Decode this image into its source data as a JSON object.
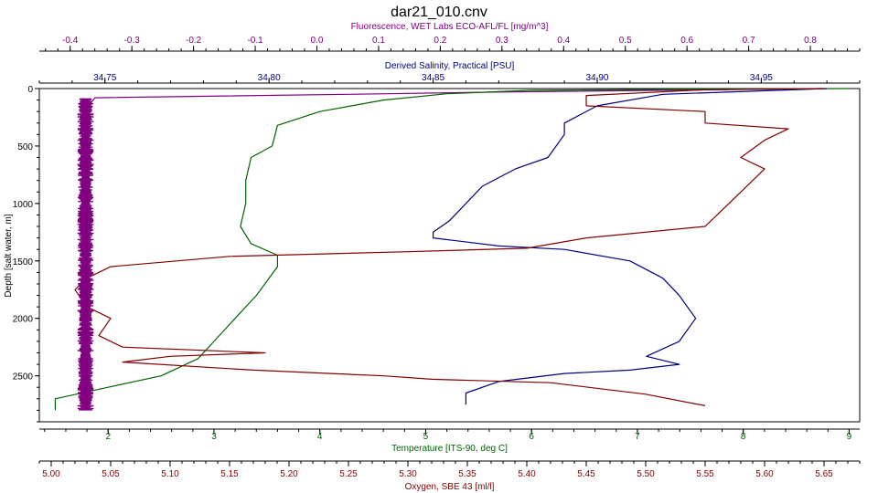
{
  "chart_data": {
    "type": "line",
    "title": "dar21_010.cnv",
    "y_axis": {
      "label": "Depth [salt water, m]",
      "range": [
        0,
        2900
      ],
      "ticks": [
        0,
        500,
        1000,
        1500,
        2000,
        2500
      ],
      "inverted": true
    },
    "x_axes": [
      {
        "id": "fluorescence",
        "label": "Fluorescence, WET Labs ECO-AFL/FL [mg/m^3]",
        "position": "top-outer",
        "color": "#800080",
        "range": [
          -0.45,
          0.88
        ],
        "ticks": [
          -0.4,
          -0.3,
          -0.2,
          -0.1,
          0.0,
          0.1,
          0.2,
          0.3,
          0.4,
          0.5,
          0.6,
          0.7,
          0.8
        ],
        "tick_labels": [
          "-0.4",
          "-0.3",
          "-0.2",
          "-0.1",
          "0.0",
          "0.1",
          "0.2",
          "0.3",
          "0.4",
          "0.5",
          "0.6",
          "0.7",
          "0.8"
        ]
      },
      {
        "id": "salinity",
        "label": "Derived Salinity, Practical [PSU]",
        "position": "top-inner",
        "color": "#000080",
        "range": [
          34.73,
          34.98
        ],
        "ticks": [
          34.75,
          34.8,
          34.85,
          34.9,
          34.95
        ],
        "tick_labels": [
          "34.75",
          "34.80",
          "34.85",
          "34.90",
          "34.95"
        ]
      },
      {
        "id": "temperature",
        "label": "Temperature [ITS-90, deg C]",
        "position": "bottom-inner",
        "color": "#006400",
        "range": [
          1.35,
          9.1
        ],
        "ticks": [
          2,
          3,
          4,
          5,
          6,
          7,
          8,
          9
        ],
        "tick_labels": [
          "2",
          "3",
          "4",
          "5",
          "6",
          "7",
          "8",
          "9"
        ]
      },
      {
        "id": "oxygen",
        "label": "Oxygen, SBE 43 [ml/l]",
        "position": "bottom-outer",
        "color": "#800000",
        "range": [
          4.99,
          5.68
        ],
        "ticks": [
          5.0,
          5.05,
          5.1,
          5.15,
          5.2,
          5.25,
          5.3,
          5.35,
          5.4,
          5.45,
          5.5,
          5.55,
          5.6,
          5.65
        ],
        "tick_labels": [
          "5.00",
          "5.05",
          "5.10",
          "5.15",
          "5.20",
          "5.25",
          "5.30",
          "5.35",
          "5.40",
          "5.45",
          "5.50",
          "5.55",
          "5.60",
          "5.65"
        ]
      }
    ],
    "series": [
      {
        "name": "Fluorescence",
        "axis": "fluorescence",
        "color": "#800080",
        "points": [
          [
            0.82,
            0
          ],
          [
            0.3,
            30
          ],
          [
            0.05,
            50
          ],
          [
            -0.36,
            80
          ],
          [
            -0.37,
            150
          ],
          [
            -0.375,
            400
          ],
          [
            -0.375,
            800
          ],
          [
            -0.375,
            1200
          ],
          [
            -0.375,
            1600
          ],
          [
            -0.375,
            2000
          ],
          [
            -0.375,
            2400
          ],
          [
            -0.375,
            2800
          ]
        ]
      },
      {
        "name": "Temperature",
        "axis": "temperature",
        "color": "#006400",
        "points": [
          [
            9.0,
            0
          ],
          [
            7.5,
            5
          ],
          [
            6.0,
            15
          ],
          [
            5.2,
            45
          ],
          [
            4.6,
            100
          ],
          [
            4.0,
            200
          ],
          [
            3.6,
            320
          ],
          [
            3.55,
            500
          ],
          [
            3.35,
            600
          ],
          [
            3.3,
            800
          ],
          [
            3.3,
            1000
          ],
          [
            3.25,
            1200
          ],
          [
            3.35,
            1350
          ],
          [
            3.6,
            1450
          ],
          [
            3.6,
            1550
          ],
          [
            3.4,
            1800
          ],
          [
            3.2,
            2000
          ],
          [
            3.0,
            2200
          ],
          [
            2.85,
            2350
          ],
          [
            2.5,
            2500
          ],
          [
            2.0,
            2600
          ],
          [
            1.5,
            2700
          ],
          [
            1.5,
            2800
          ]
        ]
      },
      {
        "name": "Salinity",
        "axis": "salinity",
        "color": "#000080",
        "points": [
          [
            34.97,
            0
          ],
          [
            34.92,
            50
          ],
          [
            34.9,
            150
          ],
          [
            34.89,
            300
          ],
          [
            34.89,
            400
          ],
          [
            34.885,
            600
          ],
          [
            34.875,
            700
          ],
          [
            34.865,
            850
          ],
          [
            34.86,
            1000
          ],
          [
            34.855,
            1150
          ],
          [
            34.85,
            1250
          ],
          [
            34.85,
            1300
          ],
          [
            34.87,
            1370
          ],
          [
            34.89,
            1400
          ],
          [
            34.91,
            1500
          ],
          [
            34.92,
            1650
          ],
          [
            34.925,
            1800
          ],
          [
            34.93,
            2000
          ],
          [
            34.925,
            2200
          ],
          [
            34.915,
            2330
          ],
          [
            34.925,
            2400
          ],
          [
            34.91,
            2450
          ],
          [
            34.89,
            2480
          ],
          [
            34.87,
            2550
          ],
          [
            34.86,
            2650
          ],
          [
            34.86,
            2750
          ]
        ]
      },
      {
        "name": "Oxygen",
        "axis": "oxygen",
        "color": "#800000",
        "points": [
          [
            5.65,
            0
          ],
          [
            5.55,
            10
          ],
          [
            5.45,
            60
          ],
          [
            5.45,
            150
          ],
          [
            5.55,
            200
          ],
          [
            5.55,
            300
          ],
          [
            5.62,
            350
          ],
          [
            5.6,
            450
          ],
          [
            5.58,
            600
          ],
          [
            5.6,
            700
          ],
          [
            5.58,
            900
          ],
          [
            5.57,
            1000
          ],
          [
            5.56,
            1100
          ],
          [
            5.55,
            1200
          ],
          [
            5.45,
            1300
          ],
          [
            5.4,
            1390
          ],
          [
            5.3,
            1420
          ],
          [
            5.15,
            1460
          ],
          [
            5.05,
            1550
          ],
          [
            5.03,
            1650
          ],
          [
            5.02,
            1750
          ],
          [
            5.03,
            1900
          ],
          [
            5.05,
            2000
          ],
          [
            5.04,
            2150
          ],
          [
            5.06,
            2250
          ],
          [
            5.18,
            2300
          ],
          [
            5.1,
            2330
          ],
          [
            5.06,
            2380
          ],
          [
            5.17,
            2450
          ],
          [
            5.28,
            2500
          ],
          [
            5.32,
            2530
          ],
          [
            5.42,
            2560
          ],
          [
            5.5,
            2660
          ],
          [
            5.55,
            2760
          ]
        ]
      }
    ]
  }
}
